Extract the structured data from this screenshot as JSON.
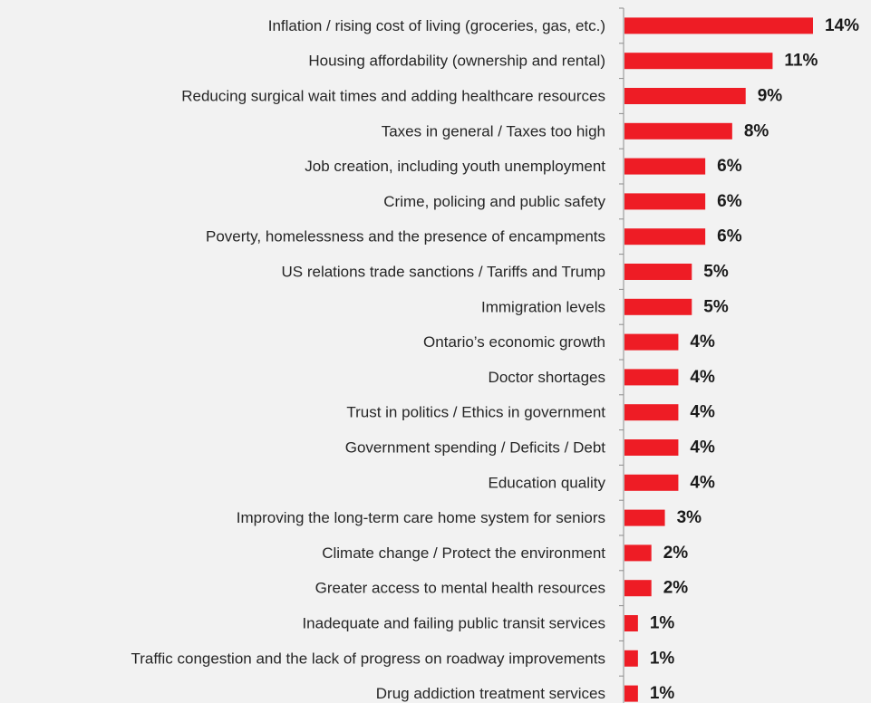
{
  "chart_data": {
    "type": "bar",
    "orientation": "horizontal",
    "categories": [
      "Inflation / rising cost of living (groceries, gas, etc.)",
      "Housing affordability (ownership and rental)",
      "Reducing surgical wait times and adding healthcare resources",
      "Taxes in general / Taxes too high",
      "Job creation, including youth unemployment",
      "Crime, policing and public safety",
      "Poverty, homelessness and the presence of encampments",
      "US relations trade sanctions / Tariffs and Trump",
      "Immigration levels",
      "Ontario’s economic growth",
      "Doctor shortages",
      "Trust in politics / Ethics in government",
      "Government spending / Deficits / Debt",
      "Education quality",
      "Improving the long-term care home system for seniors",
      "Climate change / Protect the environment",
      "Greater access to mental health resources",
      "Inadequate and failing public transit services",
      "Traffic congestion and the lack of progress on roadway improvements",
      "Drug addiction treatment services"
    ],
    "values": [
      14,
      11,
      9,
      8,
      6,
      6,
      6,
      5,
      5,
      4,
      4,
      4,
      4,
      4,
      3,
      2,
      2,
      1,
      1,
      1
    ],
    "value_labels": [
      "14%",
      "11%",
      "9%",
      "8%",
      "6%",
      "6%",
      "6%",
      "5%",
      "5%",
      "4%",
      "4%",
      "4%",
      "4%",
      "4%",
      "3%",
      "2%",
      "2%",
      "1%",
      "1%",
      "1%"
    ],
    "unit": "%",
    "bar_color": "#ee1c25",
    "background_color": "#f2f2f2",
    "grid": false,
    "legend": false,
    "xlim": [
      0,
      14
    ]
  }
}
